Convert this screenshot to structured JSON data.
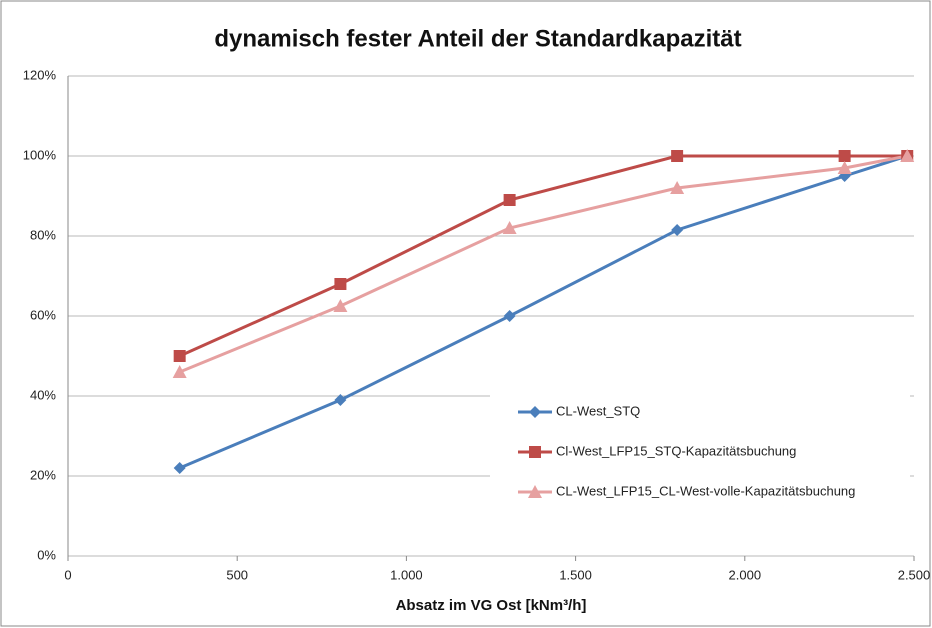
{
  "chart_data": {
    "type": "line",
    "title": "dynamisch fester Anteil der Standardkapazität",
    "x_label": "Absatz im VG Ost [kNm³/h]",
    "x": [
      330,
      805,
      1305,
      1800,
      2295,
      2480
    ],
    "series": [
      {
        "name": "CL-West_STQ",
        "color": "#4a7ebb",
        "marker": "diamond",
        "values": [
          22,
          39,
          60,
          81.5,
          95,
          100
        ]
      },
      {
        "name": "Cl-West_LFP15_STQ-Kapazitätsbuchung",
        "color": "#be4b48",
        "marker": "square",
        "values": [
          50,
          68,
          89,
          100,
          100,
          100
        ]
      },
      {
        "name": "CL-West_LFP15_CL-West-volle-Kapazitätsbuchung",
        "color": "#e6a0a0",
        "marker": "triangle",
        "values": [
          46,
          62.5,
          82,
          92,
          97,
          100
        ]
      }
    ],
    "xlim": [
      0,
      2500
    ],
    "xticks": [
      0,
      500,
      {
        "value": 1000,
        "label": "1.000"
      },
      {
        "value": 1500,
        "label": "1.500"
      },
      {
        "value": 2000,
        "label": "2.000"
      },
      {
        "value": 2500,
        "label": "2.500"
      }
    ],
    "ylim": [
      0,
      120
    ],
    "yticks": [
      {
        "value": 0,
        "label": "0%"
      },
      {
        "value": 20,
        "label": "20%"
      },
      {
        "value": 40,
        "label": "40%"
      },
      {
        "value": 60,
        "label": "60%"
      },
      {
        "value": 80,
        "label": "80%"
      },
      {
        "value": 100,
        "label": "100%"
      },
      {
        "value": 120,
        "label": "120%"
      }
    ],
    "grid": true
  }
}
